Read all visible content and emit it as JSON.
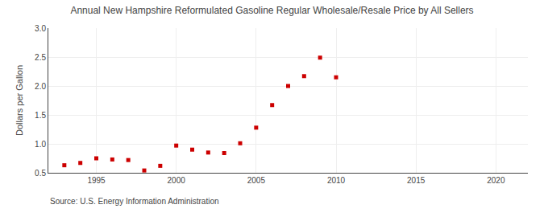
{
  "chart_data": {
    "type": "scatter",
    "title": "Annual New Hampshire Reformulated Gasoline Regular Wholesale/Resale Price by All Sellers",
    "y_label": "Dollars per Gallon",
    "annotations": [
      "Source: U.S. Energy Information Administration"
    ],
    "x": [
      1993,
      1994,
      1995,
      1996,
      1997,
      1998,
      1999,
      2000,
      2001,
      2002,
      2003,
      2004,
      2005,
      2006,
      2007,
      2008,
      2009,
      2010
    ],
    "values": [
      0.63,
      0.67,
      0.75,
      0.73,
      0.72,
      0.54,
      0.62,
      0.97,
      0.9,
      0.85,
      0.84,
      1.01,
      1.28,
      1.67,
      2.0,
      2.17,
      2.49,
      2.15
    ],
    "color": "#cc0000",
    "marker": "square",
    "xlim": [
      1992,
      2022
    ],
    "xticks": [
      1995,
      2000,
      2005,
      2010,
      2015,
      2020
    ],
    "ylim": [
      0.5,
      3.0
    ],
    "yticks": [
      0.5,
      {
        "value": 1.0,
        "label": "1.0"
      },
      1.5,
      {
        "value": 2.0,
        "label": "2.0"
      },
      2.5,
      {
        "value": 3.0,
        "label": "3.0"
      }
    ],
    "grid": true
  }
}
